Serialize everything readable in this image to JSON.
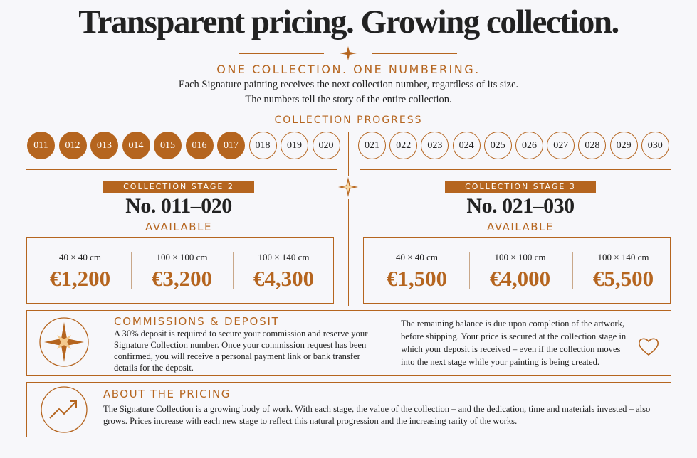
{
  "title": "Transparent pricing. Growing collection.",
  "subtitle": "ONE COLLECTION. ONE NUMBERING.",
  "intro": [
    "Each Signature painting receives the next collection number, regardless of its size.",
    "The numbers tell the story of the entire collection."
  ],
  "progress": {
    "label": "COLLECTION PROGRESS",
    "numbers": [
      {
        "label": "011",
        "taken": true
      },
      {
        "label": "012",
        "taken": true
      },
      {
        "label": "013",
        "taken": true
      },
      {
        "label": "014",
        "taken": true
      },
      {
        "label": "015",
        "taken": true
      },
      {
        "label": "016",
        "taken": true
      },
      {
        "label": "017",
        "taken": true
      },
      {
        "label": "018",
        "taken": false
      },
      {
        "label": "019",
        "taken": false
      },
      {
        "label": "020",
        "taken": false
      },
      {
        "label": "021",
        "taken": false
      },
      {
        "label": "022",
        "taken": false
      },
      {
        "label": "023",
        "taken": false
      },
      {
        "label": "024",
        "taken": false
      },
      {
        "label": "025",
        "taken": false
      },
      {
        "label": "026",
        "taken": false
      },
      {
        "label": "027",
        "taken": false
      },
      {
        "label": "028",
        "taken": false
      },
      {
        "label": "029",
        "taken": false
      },
      {
        "label": "030",
        "taken": false
      }
    ]
  },
  "stages": [
    {
      "badge": "COLLECTION STAGE 2",
      "range": "No. 011–020",
      "status": "AVAILABLE",
      "prices": [
        {
          "size": "40 × 40 cm",
          "price": "€1,200"
        },
        {
          "size": "100 × 100 cm",
          "price": "€3,200"
        },
        {
          "size": "100 × 140 cm",
          "price": "€4,300"
        }
      ]
    },
    {
      "badge": "COLLECTION STAGE 3",
      "range": "No. 021–030",
      "status": "AVAILABLE",
      "prices": [
        {
          "size": "40 × 40 cm",
          "price": "€1,500"
        },
        {
          "size": "100 × 100 cm",
          "price": "€4,000"
        },
        {
          "size": "100 × 140 cm",
          "price": "€5,500"
        }
      ]
    }
  ],
  "commissions": {
    "title": "COMMISSIONS & DEPOSIT",
    "left": "A 30% deposit is required to secure your commission and reserve your Signature Collection number. Once your commission request has been confirmed, you will receive a personal payment link or bank transfer details for the deposit.",
    "right": "The remaining balance is due upon completion of the artwork, before shipping. Your price is secured at the collection stage in which your deposit is received – even if the collection moves into the next stage while your painting is being created."
  },
  "about": {
    "title": "ABOUT THE PRICING",
    "text": "The Signature Collection is a growing body of work. With each stage, the value of the collection – and the dedication, time and materials invested – also grows. Prices increase with each new stage to reflect this natural progression and the increasing rarity of the works."
  }
}
